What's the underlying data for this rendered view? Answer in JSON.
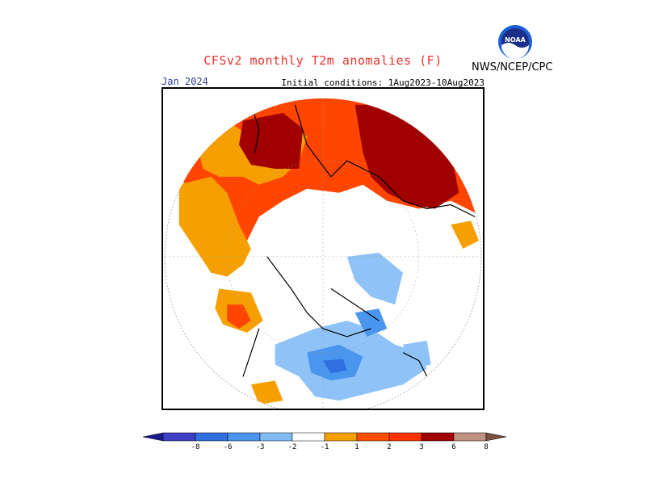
{
  "header": {
    "title": "CFSv2 monthly T2m anomalies (F)",
    "agency": "NWS/NCEP/CPC",
    "logo_text": "NOAA",
    "valid_month": "Jan 2024",
    "initial_conditions": "Initial conditions: 1Aug2023-10Aug2023"
  },
  "legend": {
    "labels": [
      "-8",
      "-6",
      "-3",
      "-2",
      "-1",
      "1",
      "2",
      "3",
      "6",
      "8"
    ],
    "colors": {
      "lt_-8": "#1a1a8c",
      "-8_-6": "#3f3fc6",
      "-6_-3": "#2f6fe0",
      "-3_-2": "#4a95ee",
      "-2_-1": "#80bcf6",
      "-1_1": "#ffffff",
      "1_2": "#f5a000",
      "2_3": "#ff4d00",
      "3_6": "#ff3300",
      "6_8": "#a00000",
      "gt_8": "#c09080"
    }
  },
  "map": {
    "projection": "polar stereographic, north pole",
    "anomaly_colors": {
      "warm1": "#f5a000",
      "warm2": "#ff4500",
      "warm3": "#a00000",
      "cool1": "#8fc3f7",
      "cool2": "#4a95ee",
      "cool3": "#2f6fe0"
    }
  }
}
